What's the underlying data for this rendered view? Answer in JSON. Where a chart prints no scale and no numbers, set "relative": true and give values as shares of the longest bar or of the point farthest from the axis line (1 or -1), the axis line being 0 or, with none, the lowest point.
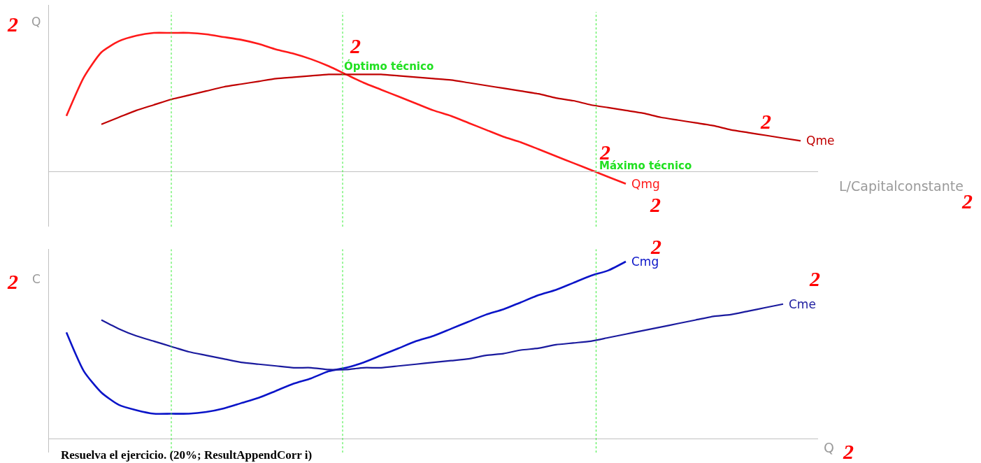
{
  "chart_data": [
    {
      "type": "line",
      "relative": true,
      "ylabel": "Q",
      "xlabel": "L/Capitalconstante",
      "marker": "none",
      "line_style": "solid",
      "categories": [
        null,
        null,
        null,
        null,
        null,
        null,
        null,
        null,
        null,
        null,
        null,
        null,
        null,
        null,
        null,
        null,
        null,
        null,
        null,
        null,
        null,
        null,
        null,
        null,
        null,
        null,
        null,
        null,
        null,
        null,
        null,
        null,
        null,
        null,
        null,
        null,
        null,
        null,
        null,
        null,
        null,
        null,
        null,
        null,
        null
      ],
      "series": [
        {
          "name": "Qmg",
          "color": "#ff1a1a",
          "values": [
            null,
            0.4,
            0.68,
            0.86,
            0.94,
            0.98,
            1.0,
            1.0,
            1.0,
            0.99,
            0.97,
            0.95,
            0.92,
            0.88,
            0.85,
            0.81,
            0.76,
            0.7,
            0.64,
            0.59,
            0.54,
            0.49,
            0.44,
            0.4,
            0.35,
            0.3,
            0.25,
            0.21,
            0.16,
            0.11,
            0.06,
            0.01,
            -0.04,
            -0.09,
            null,
            null,
            null,
            null,
            null,
            null,
            null,
            null,
            null,
            null,
            null
          ]
        },
        {
          "name": "Qme",
          "color": "#c00000",
          "values": [
            null,
            null,
            null,
            0.34,
            0.39,
            0.44,
            0.48,
            0.52,
            0.55,
            0.58,
            0.61,
            0.63,
            0.65,
            0.67,
            0.68,
            0.69,
            0.7,
            0.7,
            0.7,
            0.7,
            0.69,
            0.68,
            0.67,
            0.66,
            0.64,
            0.62,
            0.6,
            0.58,
            0.56,
            0.53,
            0.51,
            0.48,
            0.46,
            0.44,
            0.42,
            0.39,
            0.37,
            0.35,
            0.33,
            0.3,
            0.28,
            0.26,
            0.24,
            0.22,
            null
          ]
        }
      ],
      "annotations": [
        "2",
        "2",
        "2",
        "2",
        "2",
        "2",
        "Óptimo técnico",
        "Máximo técnico"
      ]
    },
    {
      "type": "line",
      "relative": true,
      "ylabel": "C",
      "xlabel": "Q",
      "marker": "none",
      "line_style": "solid",
      "categories": [
        null,
        null,
        null,
        null,
        null,
        null,
        null,
        null,
        null,
        null,
        null,
        null,
        null,
        null,
        null,
        null,
        null,
        null,
        null,
        null,
        null,
        null,
        null,
        null,
        null,
        null,
        null,
        null,
        null,
        null,
        null,
        null,
        null,
        null,
        null,
        null,
        null,
        null,
        null,
        null,
        null,
        null,
        null,
        null,
        null
      ],
      "series": [
        {
          "name": "Cmg",
          "color": "#0a14c8",
          "values": [
            null,
            0.6,
            0.38,
            0.26,
            0.19,
            0.16,
            0.14,
            0.14,
            0.14,
            0.15,
            0.17,
            0.2,
            0.23,
            0.27,
            0.31,
            0.34,
            0.38,
            0.4,
            0.43,
            0.47,
            0.51,
            0.55,
            0.58,
            0.62,
            0.66,
            0.7,
            0.73,
            0.77,
            0.81,
            0.84,
            0.88,
            0.92,
            0.95,
            1.0,
            null,
            null,
            null,
            null,
            null,
            null,
            null,
            null,
            null,
            null,
            null
          ]
        },
        {
          "name": "Cme",
          "color": "#1a1a9e",
          "values": [
            null,
            null,
            null,
            0.67,
            0.62,
            0.58,
            0.55,
            0.52,
            0.49,
            0.47,
            0.45,
            0.43,
            0.42,
            0.41,
            0.4,
            0.4,
            0.39,
            0.39,
            0.4,
            0.4,
            0.41,
            0.42,
            0.43,
            0.44,
            0.45,
            0.47,
            0.48,
            0.5,
            0.51,
            0.53,
            0.54,
            0.55,
            0.57,
            0.59,
            0.61,
            0.63,
            0.65,
            0.67,
            0.69,
            0.7,
            0.72,
            0.74,
            0.76,
            null,
            null
          ]
        }
      ],
      "annotations": [
        "2",
        "2",
        "2",
        "2",
        "Resuelva el ejercicio. (20%; ResultAppendCorr i)"
      ]
    }
  ]
}
